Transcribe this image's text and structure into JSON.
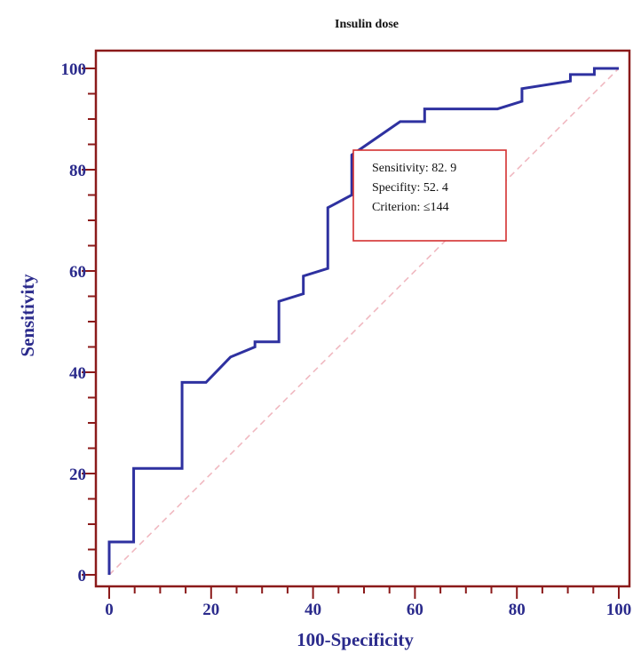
{
  "chart_data": {
    "type": "line",
    "title": "Insulin dose",
    "xlabel": "100-Specificity",
    "ylabel": "Sensitivity",
    "xlim": [
      0,
      100
    ],
    "ylim": [
      0,
      100
    ],
    "x_ticks": [
      "0",
      "20",
      "40",
      "60",
      "80",
      "100"
    ],
    "y_ticks": [
      "0",
      "20",
      "40",
      "60",
      "80",
      "100"
    ],
    "grid": false,
    "series": [
      {
        "color": "#2e31a0",
        "points": [
          [
            0,
            0
          ],
          [
            0,
            6.5
          ],
          [
            4.8,
            6.5
          ],
          [
            4.8,
            21
          ],
          [
            14.3,
            21
          ],
          [
            14.3,
            38
          ],
          [
            19,
            38
          ],
          [
            23.8,
            43
          ],
          [
            28.6,
            45
          ],
          [
            28.6,
            46
          ],
          [
            33.3,
            46
          ],
          [
            33.3,
            54
          ],
          [
            38.1,
            55.5
          ],
          [
            38.1,
            59
          ],
          [
            42.9,
            60.5
          ],
          [
            42.9,
            72.5
          ],
          [
            47.6,
            75
          ],
          [
            47.6,
            82.9
          ],
          [
            57.1,
            89.5
          ],
          [
            61.9,
            89.5
          ],
          [
            61.9,
            92
          ],
          [
            76.2,
            92
          ],
          [
            81,
            93.5
          ],
          [
            81,
            96
          ],
          [
            90.5,
            97.5
          ],
          [
            90.5,
            98.8
          ],
          [
            95.2,
            98.8
          ],
          [
            95.2,
            100
          ],
          [
            100,
            100
          ]
        ]
      }
    ],
    "reference_line": {
      "from": [
        0,
        0
      ],
      "to": [
        100,
        100
      ],
      "color": "#f0b8c0",
      "style": "dashed"
    },
    "annotation": {
      "lines": [
        "Sensitivity: 82. 9",
        "Specifity: 52. 4",
        "Criterion: ≤144"
      ],
      "border_color": "#d43030"
    },
    "frame_color": "#8b1a1a",
    "axis_color": "#2b2b8c"
  }
}
